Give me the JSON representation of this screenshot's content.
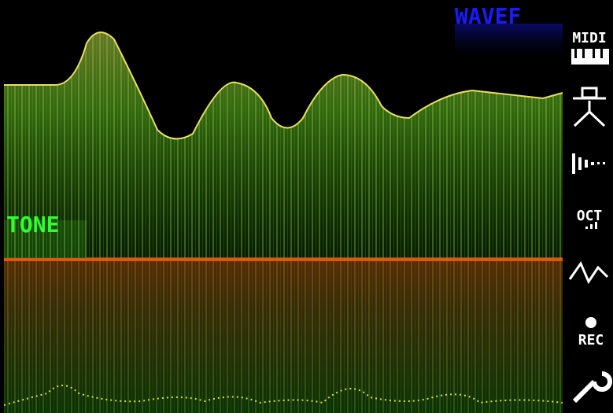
{
  "header": {
    "title": "WAVEF"
  },
  "panel": {
    "label": "TONE"
  },
  "sidebar": {
    "items": [
      "MIDI",
      "OCT",
      "REC"
    ]
  }
}
